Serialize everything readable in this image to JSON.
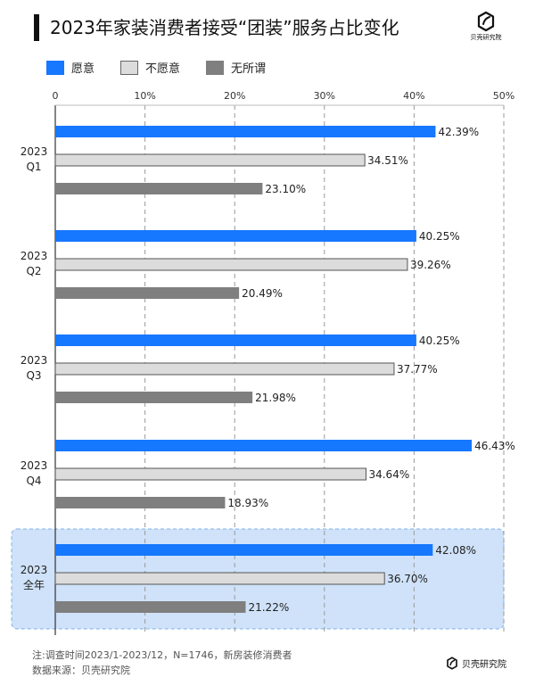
{
  "title": "2023年家装消费者接受“团装”服务占比变化",
  "logo_text": "贝壳研究院",
  "colors": {
    "willing": "#1677ff",
    "unwilling": "#dcdcdc",
    "indifferent": "#7f7f7f",
    "highlight": "#cfe2f9"
  },
  "chart_data": {
    "type": "bar",
    "orientation": "horizontal",
    "title": "2023年家装消费者接受“团装”服务占比变化",
    "categories": [
      [
        "2023",
        "Q1"
      ],
      [
        "2023",
        "Q2"
      ],
      [
        "2023",
        "Q3"
      ],
      [
        "2023",
        "Q4"
      ],
      [
        "2023",
        "全年"
      ]
    ],
    "series": [
      {
        "name": "愿意",
        "color": "#1677ff",
        "values": [
          42.39,
          40.25,
          40.25,
          46.43,
          42.08
        ]
      },
      {
        "name": "不愿意",
        "color": "#dcdcdc",
        "values": [
          34.51,
          39.26,
          37.77,
          34.64,
          36.7
        ]
      },
      {
        "name": "无所谓",
        "color": "#7f7f7f",
        "values": [
          23.1,
          20.49,
          21.98,
          18.93,
          21.22
        ]
      }
    ],
    "value_labels": [
      [
        "42.39%",
        "34.51%",
        "23.10%"
      ],
      [
        "40.25%",
        "39.26%",
        "20.49%"
      ],
      [
        "40.25%",
        "37.77%",
        "21.98%"
      ],
      [
        "46.43%",
        "34.64%",
        "18.93%"
      ],
      [
        "42.08%",
        "36.70%",
        "21.22%"
      ]
    ],
    "xlim": [
      0,
      50
    ],
    "xticks": [
      "0",
      "10%",
      "20%",
      "30%",
      "40%",
      "50%"
    ],
    "grid": true,
    "legend_position": "top-left",
    "highlighted_category": "2023 全年"
  },
  "footer": {
    "note": "注:调查时间2023/1-2023/12，N=1746，新房装修消费者",
    "source": "数据来源：贝壳研究院",
    "logo_text": "贝壳研究院"
  }
}
